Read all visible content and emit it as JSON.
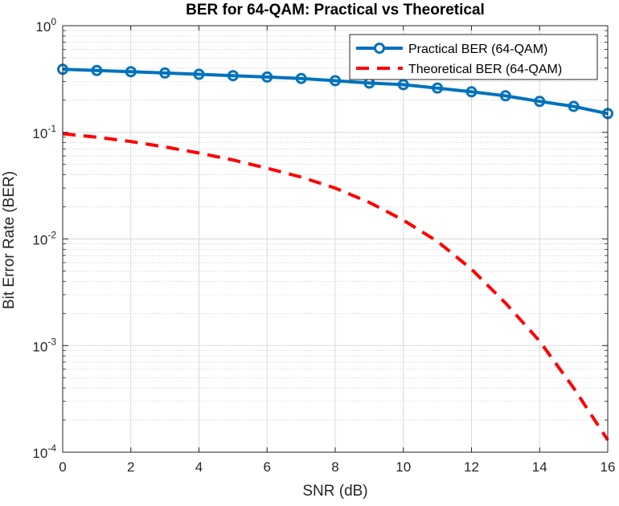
{
  "chart_data": {
    "type": "line",
    "title": "BER for 64-QAM: Practical vs Theoretical",
    "xlabel": "SNR (dB)",
    "ylabel": "Bit Error Rate (BER)",
    "xlim": [
      0,
      16
    ],
    "ylim": [
      0.0001,
      1
    ],
    "yscale": "log",
    "grid": true,
    "minor_grid": true,
    "legend_position": "top-right",
    "x_ticks": [
      0,
      2,
      4,
      6,
      8,
      10,
      12,
      14,
      16
    ],
    "y_ticks": [
      {
        "value": 0.0001,
        "base": "10",
        "exp": "-4"
      },
      {
        "value": 0.001,
        "base": "10",
        "exp": "-3"
      },
      {
        "value": 0.01,
        "base": "10",
        "exp": "-2"
      },
      {
        "value": 0.1,
        "base": "10",
        "exp": "-1"
      },
      {
        "value": 1,
        "base": "10",
        "exp": "0"
      }
    ],
    "series": [
      {
        "name": "Practical BER (64-QAM)",
        "style": "solid-circle-markers",
        "color": "#0072BD",
        "x": [
          0,
          1,
          2,
          3,
          4,
          5,
          6,
          7,
          8,
          9,
          10,
          11,
          12,
          13,
          14,
          15,
          16
        ],
        "y": [
          0.39,
          0.38,
          0.37,
          0.36,
          0.35,
          0.34,
          0.33,
          0.32,
          0.305,
          0.29,
          0.28,
          0.26,
          0.24,
          0.22,
          0.195,
          0.175,
          0.15
        ]
      },
      {
        "name": "Theoretical BER (64-QAM)",
        "style": "dashed",
        "color": "#FF0000",
        "x": [
          0,
          1,
          2,
          3,
          4,
          5,
          6,
          7,
          8,
          9,
          10,
          11,
          12,
          13,
          14,
          15,
          16
        ],
        "y": [
          0.097,
          0.09,
          0.082,
          0.073,
          0.064,
          0.055,
          0.046,
          0.038,
          0.03,
          0.022,
          0.015,
          0.0095,
          0.0052,
          0.0025,
          0.0011,
          0.0004,
          0.00013
        ]
      }
    ]
  }
}
